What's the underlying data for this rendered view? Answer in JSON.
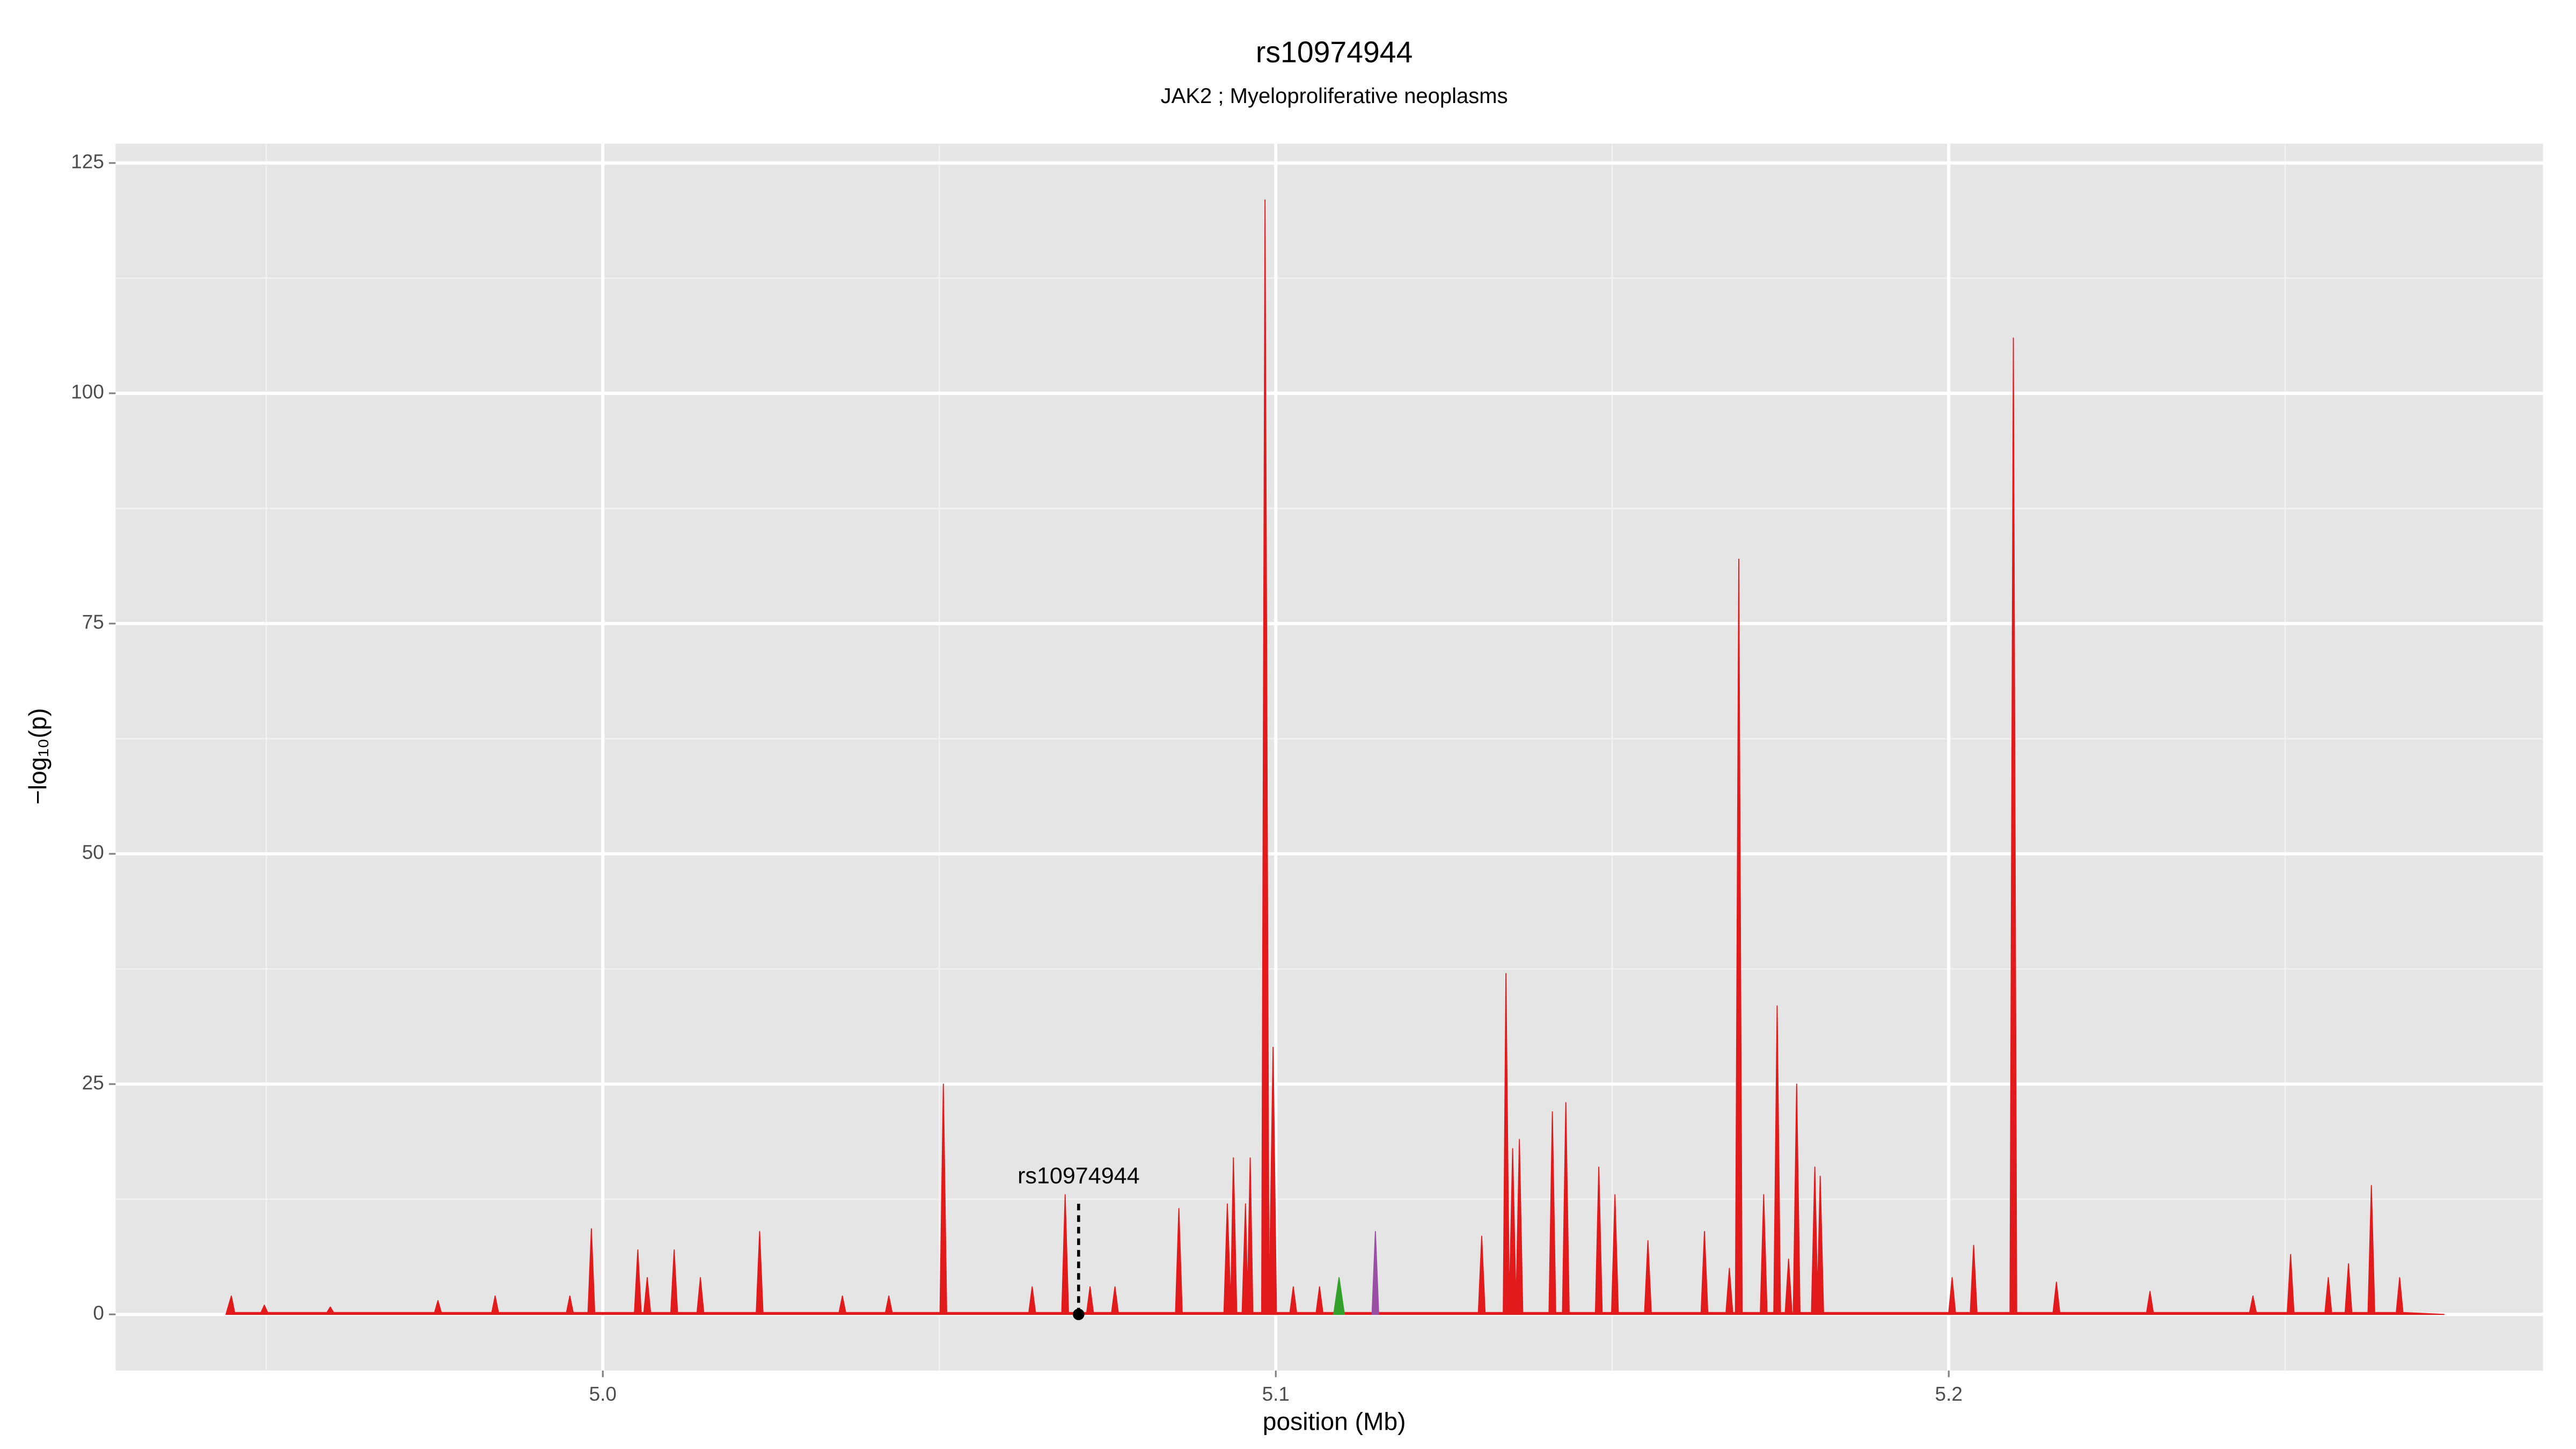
{
  "chart_data": {
    "type": "area",
    "title": "rs10974944",
    "subtitle": "JAK2 ; Myeloproliferative neoplasms",
    "x_label": "position (Mb)",
    "y_label": "−log₁₀(p)",
    "xlim": [
      4.9276,
      5.2883
    ],
    "ylim": [
      -6.1,
      127.1
    ],
    "xticks": [
      {
        "value": 5,
        "label": "5.0"
      },
      5.1,
      5.2
    ],
    "xminor": [
      4.95,
      5.05,
      5.15,
      5.25
    ],
    "yticks": [
      0,
      25,
      50,
      75,
      100,
      125
    ],
    "yminor": [
      12.5,
      37.5,
      62.5,
      87.5,
      112.5
    ],
    "grid": true,
    "annotation": {
      "text": "rs10974944",
      "x": 5.0707,
      "y": 0
    },
    "series": [
      {
        "color": "#e31a1c",
        "x": [
          4.944,
          4.9448,
          4.9453,
          4.9492,
          4.9497,
          4.9502,
          4.959,
          4.9595,
          4.96,
          4.975,
          4.9755,
          4.976,
          4.9835,
          4.984,
          4.9845,
          4.9946,
          4.9951,
          4.9956,
          4.9978,
          4.9983,
          4.9988,
          5.0047,
          5.0052,
          5.0057,
          5.0061,
          5.0066,
          5.0071,
          5.0101,
          5.0106,
          5.0111,
          5.014,
          5.0145,
          5.015,
          5.0228,
          5.0233,
          5.0238,
          5.0351,
          5.0356,
          5.0361,
          5.042,
          5.0425,
          5.043,
          5.0501,
          5.0506,
          5.0511,
          5.0633,
          5.0638,
          5.0643,
          5.0682,
          5.0687,
          5.0692,
          5.0719,
          5.0724,
          5.0729,
          5.0756,
          5.0761,
          5.0766,
          5.0851,
          5.0856,
          5.0861,
          5.0923,
          5.0928,
          5.0933,
          5.0937,
          5.0942,
          5.095,
          5.0955,
          5.0958,
          5.0962,
          5.0966,
          5.0979,
          5.0984,
          5.099,
          5.0996,
          5.1001,
          5.1021,
          5.1026,
          5.1031,
          5.106,
          5.1065,
          5.107,
          5.1301,
          5.1306,
          5.1311,
          5.1338,
          5.1342,
          5.1347,
          5.1352,
          5.1357,
          5.1362,
          5.1367,
          5.1406,
          5.1411,
          5.1416,
          5.1426,
          5.1431,
          5.1436,
          5.1475,
          5.148,
          5.1485,
          5.1499,
          5.1504,
          5.1509,
          5.1548,
          5.1553,
          5.1558,
          5.1632,
          5.1637,
          5.1642,
          5.1669,
          5.1674,
          5.1679,
          5.1683,
          5.1688,
          5.1693,
          5.172,
          5.1725,
          5.173,
          5.174,
          5.1745,
          5.175,
          5.1757,
          5.1762,
          5.1767,
          5.1769,
          5.1774,
          5.1779,
          5.1796,
          5.1801,
          5.1805,
          5.1809,
          5.1814,
          5.2,
          5.2005,
          5.201,
          5.2032,
          5.2037,
          5.2042,
          5.2091,
          5.2096,
          5.2101,
          5.2155,
          5.216,
          5.2165,
          5.2294,
          5.2299,
          5.2304,
          5.2447,
          5.2452,
          5.2457,
          5.2503,
          5.2508,
          5.2513,
          5.2559,
          5.2564,
          5.2569,
          5.2589,
          5.2594,
          5.2599,
          5.2623,
          5.2628,
          5.2633,
          5.2665,
          5.267,
          5.2675,
          5.2736
        ],
        "values": [
          0,
          2,
          0.2,
          0.2,
          1,
          0.2,
          0.2,
          0.8,
          0.2,
          0.2,
          1.5,
          0.2,
          0.2,
          2,
          0.2,
          0.2,
          2,
          0.2,
          0.2,
          9.3,
          0.2,
          0.2,
          7,
          0.2,
          0.2,
          4,
          0.2,
          0.2,
          7,
          0.2,
          0.2,
          4,
          0.2,
          0.2,
          9,
          0.2,
          0.2,
          2,
          0.2,
          0.2,
          2,
          0.2,
          0.2,
          25,
          0.2,
          0.2,
          3,
          0.2,
          0.2,
          13,
          0.2,
          0.2,
          3,
          0.2,
          0.2,
          3,
          0.2,
          0.2,
          11.5,
          0.2,
          0.2,
          12,
          1,
          17,
          0.2,
          0.2,
          12,
          2,
          17,
          0.2,
          0.2,
          121,
          0.5,
          29,
          0.2,
          0.2,
          3,
          0.2,
          0.2,
          3,
          0.2,
          0.2,
          8.5,
          0.2,
          0.2,
          37,
          1,
          18,
          1,
          19,
          0.2,
          0.2,
          22,
          0.2,
          0.2,
          23,
          0.2,
          0.2,
          16,
          0.2,
          0.2,
          13,
          0.2,
          0.2,
          8,
          0.2,
          0.2,
          9,
          0.2,
          0.2,
          5,
          0.2,
          0.2,
          82,
          0.2,
          0.2,
          13,
          0.2,
          0.2,
          33.5,
          0.2,
          0.2,
          6,
          0.2,
          0.2,
          25,
          0.2,
          0.2,
          16,
          2,
          15,
          0.2,
          0.2,
          4,
          0.2,
          0.2,
          7.5,
          0.2,
          0.2,
          106,
          0.2,
          0.2,
          3.5,
          0.2,
          0.2,
          2.5,
          0.2,
          0.2,
          2,
          0.2,
          0.2,
          6.5,
          0.2,
          0.2,
          4,
          0.2,
          0.2,
          5.5,
          0.2,
          0.2,
          14,
          0.2,
          0.2,
          4,
          0.2,
          0
        ]
      },
      {
        "color": "#33a02c",
        "x": [
          5.1086,
          5.1094,
          5.1102
        ],
        "values": [
          0,
          4,
          0
        ]
      },
      {
        "color": "#984ea3",
        "x": [
          5.1143,
          5.1148,
          5.1153
        ],
        "values": [
          0,
          9,
          0
        ]
      }
    ]
  }
}
